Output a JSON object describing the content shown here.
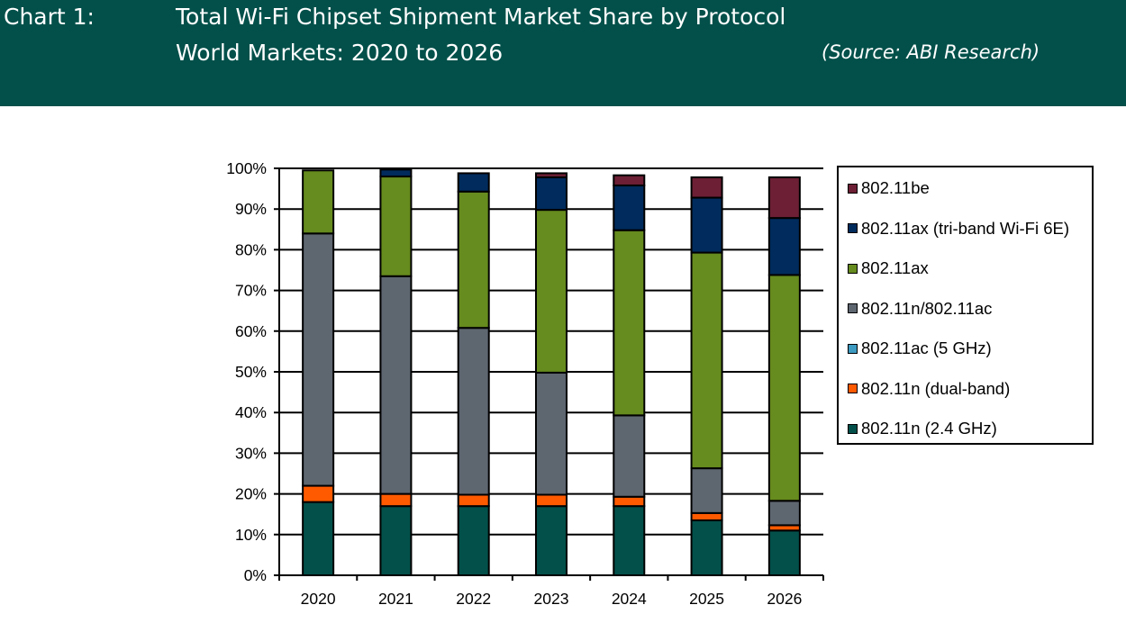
{
  "header": {
    "chart_label": "Chart 1:",
    "title_line1": "Total Wi-Fi Chipset Shipment Market Share by Protocol",
    "title_line2": "World Markets: 2020 to 2026",
    "source": "(Source: ABI Research)",
    "background_color": "#03504A"
  },
  "chart_data": {
    "type": "bar",
    "stacked": true,
    "title": "Total Wi-Fi Chipset Shipment Market Share by Protocol",
    "subtitle": "World Markets: 2020 to 2026",
    "xlabel": "",
    "ylabel": "",
    "ylim": [
      0,
      100
    ],
    "y_ticks": [
      "0%",
      "10%",
      "20%",
      "30%",
      "40%",
      "50%",
      "60%",
      "70%",
      "80%",
      "90%",
      "100%"
    ],
    "grid": true,
    "legend_position": "right",
    "categories": [
      "2020",
      "2021",
      "2022",
      "2023",
      "2024",
      "2025",
      "2026"
    ],
    "series": [
      {
        "name": "802.11n (2.4 GHz)",
        "color": "#03504A",
        "values": [
          18,
          17,
          17,
          17,
          17,
          13.5,
          11
        ]
      },
      {
        "name": "802.11n (dual-band)",
        "color": "#FF5A00",
        "values": [
          4,
          3,
          2.8,
          2.8,
          2.3,
          1.8,
          1.3
        ]
      },
      {
        "name": "802.11ac (5 GHz)",
        "color": "#3D9AC0",
        "values": [
          0,
          0,
          0,
          0,
          0,
          0,
          0
        ]
      },
      {
        "name": "802.11n/802.11ac",
        "color": "#5E6670",
        "values": [
          62,
          53.5,
          41,
          30,
          20,
          11,
          6
        ]
      },
      {
        "name": "802.11ax",
        "color": "#668B1E",
        "values": [
          15.5,
          24.5,
          33.5,
          40,
          45.5,
          53,
          55.5
        ]
      },
      {
        "name": "802.11ax (tri-band Wi-Fi 6E)",
        "color": "#002B5C",
        "values": [
          0,
          1.7,
          4.5,
          8,
          11,
          13.5,
          14
        ]
      },
      {
        "name": "802.11be",
        "color": "#6C1F35",
        "values": [
          0,
          0,
          0,
          1,
          2.5,
          5,
          10
        ]
      }
    ],
    "legend_order": [
      "802.11be",
      "802.11ax (tri-band Wi-Fi 6E)",
      "802.11ax",
      "802.11n/802.11ac",
      "802.11ac (5 GHz)",
      "802.11n (dual-band)",
      "802.11n (2.4 GHz)"
    ]
  }
}
